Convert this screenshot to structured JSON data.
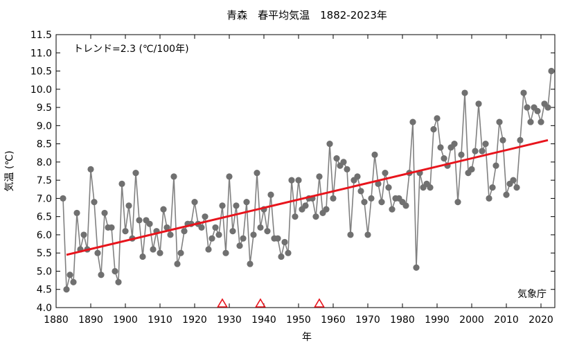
{
  "chart_data": {
    "type": "line",
    "title": "青森　春平均気温　1882-2023年",
    "xlabel": "年",
    "ylabel": "気温 (℃)",
    "xlim": [
      1880,
      2024
    ],
    "ylim": [
      4.0,
      11.5
    ],
    "xticks": [
      1880,
      1890,
      1900,
      1910,
      1920,
      1930,
      1940,
      1950,
      1960,
      1970,
      1980,
      1990,
      2000,
      2010,
      2020
    ],
    "yticks": [
      4.0,
      4.5,
      5.0,
      5.5,
      6.0,
      6.5,
      7.0,
      7.5,
      8.0,
      8.5,
      9.0,
      9.5,
      10.0,
      10.5,
      11.0,
      11.5
    ],
    "ytick_labels": [
      "4.0",
      "4.5",
      "5.0",
      "5.5",
      "6.0",
      "6.5",
      "7.0",
      "7.5",
      "8.0",
      "8.5",
      "9.0",
      "9.5",
      "10.0",
      "10.5",
      "11.0",
      "11.5"
    ],
    "trend_text": "トレンド=2.3 (℃/100年)",
    "source_text": "気象庁",
    "grid": false,
    "series": [
      {
        "color": "#808080",
        "marker_color": "#707070",
        "x": [
          1882,
          1883,
          1884,
          1885,
          1886,
          1887,
          1888,
          1889,
          1890,
          1891,
          1892,
          1893,
          1894,
          1895,
          1896,
          1897,
          1898,
          1899,
          1900,
          1901,
          1902,
          1903,
          1904,
          1905,
          1906,
          1907,
          1908,
          1909,
          1910,
          1911,
          1912,
          1913,
          1914,
          1915,
          1916,
          1917,
          1918,
          1919,
          1920,
          1921,
          1922,
          1923,
          1924,
          1925,
          1926,
          1927,
          1928,
          1929,
          1930,
          1931,
          1932,
          1933,
          1934,
          1935,
          1936,
          1937,
          1938,
          1939,
          1940,
          1941,
          1942,
          1943,
          1944,
          1945,
          1946,
          1947,
          1948,
          1949,
          1950,
          1951,
          1952,
          1953,
          1954,
          1955,
          1956,
          1957,
          1958,
          1959,
          1960,
          1961,
          1962,
          1963,
          1964,
          1965,
          1966,
          1967,
          1968,
          1969,
          1970,
          1971,
          1972,
          1973,
          1974,
          1975,
          1976,
          1977,
          1978,
          1979,
          1980,
          1981,
          1982,
          1983,
          1984,
          1985,
          1986,
          1987,
          1988,
          1989,
          1990,
          1991,
          1992,
          1993,
          1994,
          1995,
          1996,
          1997,
          1998,
          1999,
          2000,
          2001,
          2002,
          2003,
          2004,
          2005,
          2006,
          2007,
          2008,
          2009,
          2010,
          2011,
          2012,
          2013,
          2014,
          2015,
          2016,
          2017,
          2018,
          2019,
          2020,
          2021,
          2022,
          2023
        ],
        "values": [
          7.0,
          4.5,
          4.9,
          4.7,
          6.6,
          5.6,
          6.0,
          5.6,
          7.8,
          6.9,
          5.5,
          4.9,
          6.6,
          6.2,
          6.2,
          5.0,
          4.7,
          7.4,
          6.1,
          6.8,
          5.9,
          7.7,
          6.4,
          5.4,
          6.4,
          6.3,
          5.6,
          6.1,
          5.5,
          6.7,
          6.2,
          6.0,
          7.6,
          5.2,
          5.5,
          6.1,
          6.3,
          6.3,
          6.9,
          6.3,
          6.2,
          6.5,
          5.6,
          5.9,
          6.2,
          6.0,
          6.8,
          5.5,
          7.6,
          6.1,
          6.8,
          5.7,
          5.9,
          6.9,
          5.2,
          6.0,
          7.7,
          6.2,
          6.7,
          6.1,
          7.1,
          5.9,
          5.9,
          5.4,
          5.8,
          5.5,
          7.5,
          6.5,
          7.5,
          6.7,
          6.8,
          7.0,
          7.0,
          6.5,
          7.6,
          6.6,
          6.7,
          8.5,
          7.0,
          8.1,
          7.9,
          8.0,
          7.8,
          6.0,
          7.5,
          7.6,
          7.2,
          6.9,
          6.0,
          7.0,
          8.2,
          7.4,
          6.9,
          7.7,
          7.3,
          6.7,
          7.0,
          7.0,
          6.9,
          6.8,
          7.7,
          9.1,
          5.1,
          7.7,
          7.3,
          7.4,
          7.3,
          8.9,
          9.2,
          8.4,
          8.1,
          7.9,
          8.4,
          8.5,
          6.9,
          8.2,
          9.9,
          7.7,
          7.8,
          8.3,
          9.6,
          8.3,
          8.5,
          7.0,
          7.3,
          7.9,
          9.1,
          8.6,
          7.1,
          7.4,
          7.5,
          7.3,
          8.6,
          9.9,
          9.5,
          9.1,
          9.5,
          9.4,
          9.1,
          9.6,
          9.5,
          10.5
        ]
      }
    ],
    "trend_line": {
      "color": "#e8141c",
      "x": [
        1883,
        2022
      ],
      "values": [
        5.45,
        8.6
      ]
    },
    "station_relocation_years": [
      1928,
      1939,
      1956
    ]
  }
}
